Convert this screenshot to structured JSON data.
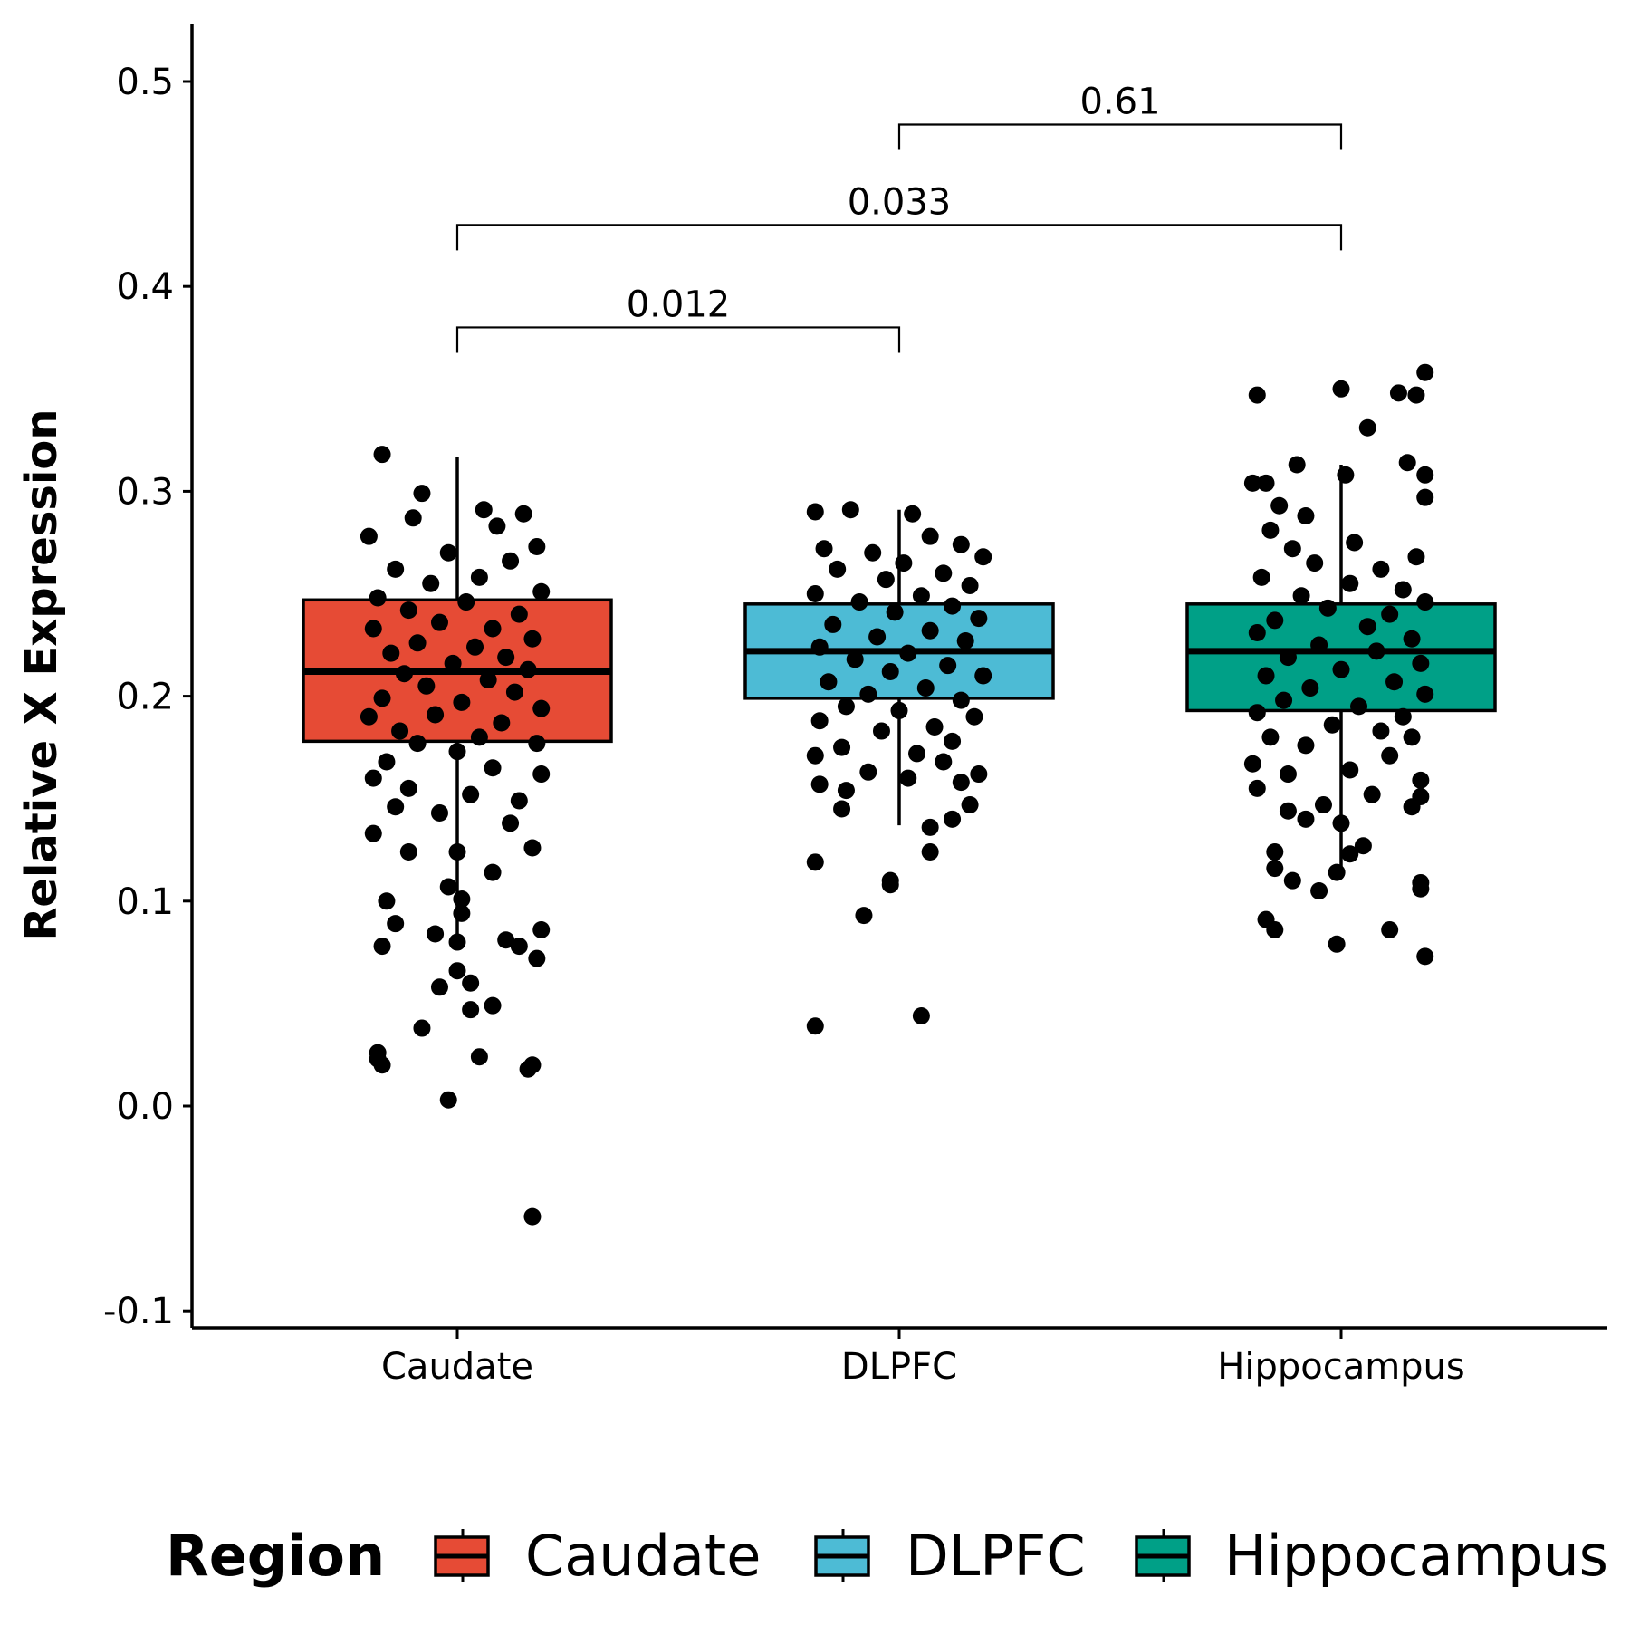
{
  "chart_data": {
    "type": "box",
    "title": "",
    "xlabel": "",
    "ylabel": "Relative X Expression",
    "ylim": [
      -0.1,
      0.53
    ],
    "yticks": [
      -0.1,
      0.0,
      0.1,
      0.2,
      0.3,
      0.4,
      0.5
    ],
    "ytick_labels": [
      "-0.1",
      "0.0",
      "0.1",
      "0.2",
      "0.3",
      "0.4",
      "0.5"
    ],
    "categories": [
      "Caudate",
      "DLPFC",
      "Hippocampus"
    ],
    "grid": false,
    "legend": {
      "title": "Region",
      "position": "bottom",
      "entries": [
        "Caudate",
        "DLPFC",
        "Hippocampus"
      ]
    },
    "colors": {
      "Caudate": "#E64B35",
      "DLPFC": "#4DBBD5",
      "Hippocampus": "#00A087"
    },
    "boxes": [
      {
        "name": "Caudate",
        "q1": 0.178,
        "median": 0.212,
        "q3": 0.247,
        "whisker_low": 0.084,
        "whisker_high": 0.317
      },
      {
        "name": "DLPFC",
        "q1": 0.199,
        "median": 0.222,
        "q3": 0.245,
        "whisker_low": 0.137,
        "whisker_high": 0.291
      },
      {
        "name": "Hippocampus",
        "q1": 0.193,
        "median": 0.222,
        "q3": 0.245,
        "whisker_low": 0.117,
        "whisker_high": 0.313
      }
    ],
    "comparisons": [
      {
        "from": "Caudate",
        "to": "DLPFC",
        "p_value": "0.012",
        "y": 0.38
      },
      {
        "from": "Caudate",
        "to": "Hippocampus",
        "p_value": "0.033",
        "y": 0.43
      },
      {
        "from": "DLPFC",
        "to": "Hippocampus",
        "p_value": "0.61",
        "y": 0.479
      }
    ],
    "points": {
      "Caudate": [
        {
          "dx": -0.17,
          "y": 0.318
        },
        {
          "dx": -0.08,
          "y": 0.299
        },
        {
          "dx": 0.06,
          "y": 0.291
        },
        {
          "dx": 0.15,
          "y": 0.289
        },
        {
          "dx": -0.1,
          "y": 0.287
        },
        {
          "dx": 0.09,
          "y": 0.283
        },
        {
          "dx": -0.2,
          "y": 0.278
        },
        {
          "dx": 0.18,
          "y": 0.273
        },
        {
          "dx": -0.02,
          "y": 0.27
        },
        {
          "dx": 0.12,
          "y": 0.266
        },
        {
          "dx": -0.14,
          "y": 0.262
        },
        {
          "dx": 0.05,
          "y": 0.258
        },
        {
          "dx": -0.06,
          "y": 0.255
        },
        {
          "dx": 0.19,
          "y": 0.251
        },
        {
          "dx": -0.18,
          "y": 0.248
        },
        {
          "dx": 0.02,
          "y": 0.246
        },
        {
          "dx": -0.11,
          "y": 0.242
        },
        {
          "dx": 0.14,
          "y": 0.24
        },
        {
          "dx": -0.04,
          "y": 0.236
        },
        {
          "dx": 0.08,
          "y": 0.233
        },
        {
          "dx": -0.19,
          "y": 0.233
        },
        {
          "dx": 0.17,
          "y": 0.228
        },
        {
          "dx": -0.09,
          "y": 0.226
        },
        {
          "dx": 0.04,
          "y": 0.224
        },
        {
          "dx": -0.15,
          "y": 0.221
        },
        {
          "dx": 0.11,
          "y": 0.219
        },
        {
          "dx": -0.01,
          "y": 0.216
        },
        {
          "dx": 0.16,
          "y": 0.213
        },
        {
          "dx": -0.12,
          "y": 0.211
        },
        {
          "dx": 0.07,
          "y": 0.208
        },
        {
          "dx": -0.07,
          "y": 0.205
        },
        {
          "dx": 0.13,
          "y": 0.202
        },
        {
          "dx": -0.17,
          "y": 0.199
        },
        {
          "dx": 0.01,
          "y": 0.197
        },
        {
          "dx": 0.19,
          "y": 0.194
        },
        {
          "dx": -0.05,
          "y": 0.191
        },
        {
          "dx": -0.2,
          "y": 0.19
        },
        {
          "dx": 0.1,
          "y": 0.187
        },
        {
          "dx": -0.13,
          "y": 0.183
        },
        {
          "dx": 0.05,
          "y": 0.18
        },
        {
          "dx": -0.09,
          "y": 0.177
        },
        {
          "dx": 0.18,
          "y": 0.177
        },
        {
          "dx": 0.0,
          "y": 0.173
        },
        {
          "dx": -0.16,
          "y": 0.168
        },
        {
          "dx": 0.08,
          "y": 0.165
        },
        {
          "dx": 0.19,
          "y": 0.162
        },
        {
          "dx": -0.19,
          "y": 0.16
        },
        {
          "dx": -0.11,
          "y": 0.155
        },
        {
          "dx": 0.03,
          "y": 0.152
        },
        {
          "dx": 0.14,
          "y": 0.149
        },
        {
          "dx": -0.14,
          "y": 0.146
        },
        {
          "dx": -0.04,
          "y": 0.143
        },
        {
          "dx": 0.12,
          "y": 0.138
        },
        {
          "dx": -0.19,
          "y": 0.133
        },
        {
          "dx": 0.17,
          "y": 0.126
        },
        {
          "dx": -0.11,
          "y": 0.124
        },
        {
          "dx": 0.0,
          "y": 0.124
        },
        {
          "dx": 0.08,
          "y": 0.114
        },
        {
          "dx": -0.02,
          "y": 0.107
        },
        {
          "dx": 0.01,
          "y": 0.101
        },
        {
          "dx": -0.16,
          "y": 0.1
        },
        {
          "dx": 0.01,
          "y": 0.094
        },
        {
          "dx": -0.14,
          "y": 0.089
        },
        {
          "dx": 0.19,
          "y": 0.086
        },
        {
          "dx": -0.05,
          "y": 0.084
        },
        {
          "dx": 0.11,
          "y": 0.081
        },
        {
          "dx": 0.0,
          "y": 0.08
        },
        {
          "dx": 0.14,
          "y": 0.078
        },
        {
          "dx": -0.17,
          "y": 0.078
        },
        {
          "dx": 0.18,
          "y": 0.072
        },
        {
          "dx": 0.0,
          "y": 0.066
        },
        {
          "dx": 0.03,
          "y": 0.06
        },
        {
          "dx": -0.04,
          "y": 0.058
        },
        {
          "dx": 0.08,
          "y": 0.049
        },
        {
          "dx": 0.03,
          "y": 0.047
        },
        {
          "dx": -0.08,
          "y": 0.038
        },
        {
          "dx": -0.18,
          "y": 0.026
        },
        {
          "dx": -0.18,
          "y": 0.023
        },
        {
          "dx": 0.05,
          "y": 0.024
        },
        {
          "dx": 0.17,
          "y": 0.02
        },
        {
          "dx": -0.17,
          "y": 0.02
        },
        {
          "dx": 0.16,
          "y": 0.018
        },
        {
          "dx": -0.02,
          "y": 0.003
        },
        {
          "dx": 0.17,
          "y": -0.054
        }
      ],
      "DLPFC": [
        {
          "dx": -0.19,
          "y": 0.29
        },
        {
          "dx": -0.11,
          "y": 0.291
        },
        {
          "dx": 0.03,
          "y": 0.289
        },
        {
          "dx": 0.07,
          "y": 0.278
        },
        {
          "dx": -0.17,
          "y": 0.272
        },
        {
          "dx": 0.14,
          "y": 0.274
        },
        {
          "dx": -0.06,
          "y": 0.27
        },
        {
          "dx": 0.19,
          "y": 0.268
        },
        {
          "dx": 0.01,
          "y": 0.265
        },
        {
          "dx": -0.14,
          "y": 0.262
        },
        {
          "dx": 0.1,
          "y": 0.26
        },
        {
          "dx": -0.03,
          "y": 0.257
        },
        {
          "dx": 0.16,
          "y": 0.254
        },
        {
          "dx": -0.19,
          "y": 0.25
        },
        {
          "dx": 0.05,
          "y": 0.249
        },
        {
          "dx": -0.09,
          "y": 0.246
        },
        {
          "dx": 0.12,
          "y": 0.244
        },
        {
          "dx": -0.01,
          "y": 0.241
        },
        {
          "dx": 0.18,
          "y": 0.238
        },
        {
          "dx": -0.15,
          "y": 0.235
        },
        {
          "dx": 0.07,
          "y": 0.232
        },
        {
          "dx": -0.05,
          "y": 0.229
        },
        {
          "dx": 0.15,
          "y": 0.227
        },
        {
          "dx": -0.18,
          "y": 0.224
        },
        {
          "dx": 0.02,
          "y": 0.221
        },
        {
          "dx": -0.1,
          "y": 0.218
        },
        {
          "dx": 0.11,
          "y": 0.215
        },
        {
          "dx": -0.02,
          "y": 0.212
        },
        {
          "dx": 0.19,
          "y": 0.21
        },
        {
          "dx": -0.16,
          "y": 0.207
        },
        {
          "dx": 0.06,
          "y": 0.204
        },
        {
          "dx": -0.07,
          "y": 0.201
        },
        {
          "dx": 0.14,
          "y": 0.198
        },
        {
          "dx": -0.12,
          "y": 0.195
        },
        {
          "dx": 0.0,
          "y": 0.193
        },
        {
          "dx": 0.17,
          "y": 0.19
        },
        {
          "dx": -0.18,
          "y": 0.188
        },
        {
          "dx": 0.08,
          "y": 0.185
        },
        {
          "dx": -0.04,
          "y": 0.183
        },
        {
          "dx": 0.12,
          "y": 0.178
        },
        {
          "dx": -0.13,
          "y": 0.175
        },
        {
          "dx": 0.04,
          "y": 0.172
        },
        {
          "dx": -0.19,
          "y": 0.171
        },
        {
          "dx": 0.1,
          "y": 0.168
        },
        {
          "dx": -0.07,
          "y": 0.163
        },
        {
          "dx": 0.18,
          "y": 0.162
        },
        {
          "dx": 0.02,
          "y": 0.16
        },
        {
          "dx": -0.18,
          "y": 0.157
        },
        {
          "dx": 0.14,
          "y": 0.158
        },
        {
          "dx": -0.12,
          "y": 0.154
        },
        {
          "dx": 0.16,
          "y": 0.147
        },
        {
          "dx": -0.13,
          "y": 0.145
        },
        {
          "dx": 0.12,
          "y": 0.14
        },
        {
          "dx": 0.07,
          "y": 0.136
        },
        {
          "dx": 0.07,
          "y": 0.124
        },
        {
          "dx": -0.19,
          "y": 0.119
        },
        {
          "dx": -0.02,
          "y": 0.11
        },
        {
          "dx": -0.02,
          "y": 0.108
        },
        {
          "dx": -0.08,
          "y": 0.093
        },
        {
          "dx": 0.05,
          "y": 0.044
        },
        {
          "dx": -0.19,
          "y": 0.039
        }
      ],
      "Hippocampus": [
        {
          "dx": 0.19,
          "y": 0.358
        },
        {
          "dx": 0.0,
          "y": 0.35
        },
        {
          "dx": 0.13,
          "y": 0.348
        },
        {
          "dx": 0.17,
          "y": 0.347
        },
        {
          "dx": -0.19,
          "y": 0.347
        },
        {
          "dx": 0.06,
          "y": 0.331
        },
        {
          "dx": 0.15,
          "y": 0.314
        },
        {
          "dx": -0.1,
          "y": 0.313
        },
        {
          "dx": 0.19,
          "y": 0.308
        },
        {
          "dx": 0.01,
          "y": 0.308
        },
        {
          "dx": -0.2,
          "y": 0.304
        },
        {
          "dx": -0.17,
          "y": 0.304
        },
        {
          "dx": 0.19,
          "y": 0.297
        },
        {
          "dx": -0.14,
          "y": 0.293
        },
        {
          "dx": -0.08,
          "y": 0.288
        },
        {
          "dx": -0.16,
          "y": 0.281
        },
        {
          "dx": 0.03,
          "y": 0.275
        },
        {
          "dx": -0.11,
          "y": 0.272
        },
        {
          "dx": 0.17,
          "y": 0.268
        },
        {
          "dx": -0.06,
          "y": 0.265
        },
        {
          "dx": 0.09,
          "y": 0.262
        },
        {
          "dx": -0.18,
          "y": 0.258
        },
        {
          "dx": 0.02,
          "y": 0.255
        },
        {
          "dx": 0.14,
          "y": 0.252
        },
        {
          "dx": -0.09,
          "y": 0.249
        },
        {
          "dx": 0.19,
          "y": 0.246
        },
        {
          "dx": -0.03,
          "y": 0.243
        },
        {
          "dx": 0.11,
          "y": 0.24
        },
        {
          "dx": -0.15,
          "y": 0.237
        },
        {
          "dx": 0.06,
          "y": 0.234
        },
        {
          "dx": -0.19,
          "y": 0.231
        },
        {
          "dx": 0.16,
          "y": 0.228
        },
        {
          "dx": -0.05,
          "y": 0.225
        },
        {
          "dx": 0.08,
          "y": 0.222
        },
        {
          "dx": -0.12,
          "y": 0.219
        },
        {
          "dx": 0.18,
          "y": 0.216
        },
        {
          "dx": 0.0,
          "y": 0.213
        },
        {
          "dx": -0.17,
          "y": 0.21
        },
        {
          "dx": 0.12,
          "y": 0.207
        },
        {
          "dx": -0.07,
          "y": 0.204
        },
        {
          "dx": 0.19,
          "y": 0.201
        },
        {
          "dx": -0.13,
          "y": 0.198
        },
        {
          "dx": 0.04,
          "y": 0.195
        },
        {
          "dx": -0.19,
          "y": 0.192
        },
        {
          "dx": 0.14,
          "y": 0.19
        },
        {
          "dx": -0.02,
          "y": 0.186
        },
        {
          "dx": 0.09,
          "y": 0.183
        },
        {
          "dx": -0.16,
          "y": 0.18
        },
        {
          "dx": 0.16,
          "y": 0.18
        },
        {
          "dx": -0.08,
          "y": 0.176
        },
        {
          "dx": 0.11,
          "y": 0.171
        },
        {
          "dx": -0.2,
          "y": 0.167
        },
        {
          "dx": 0.02,
          "y": 0.164
        },
        {
          "dx": -0.12,
          "y": 0.162
        },
        {
          "dx": 0.18,
          "y": 0.159
        },
        {
          "dx": -0.19,
          "y": 0.155
        },
        {
          "dx": 0.07,
          "y": 0.152
        },
        {
          "dx": 0.18,
          "y": 0.151
        },
        {
          "dx": -0.04,
          "y": 0.147
        },
        {
          "dx": 0.16,
          "y": 0.146
        },
        {
          "dx": -0.12,
          "y": 0.144
        },
        {
          "dx": 0.0,
          "y": 0.138
        },
        {
          "dx": -0.08,
          "y": 0.14
        },
        {
          "dx": 0.05,
          "y": 0.127
        },
        {
          "dx": -0.15,
          "y": 0.124
        },
        {
          "dx": 0.02,
          "y": 0.123
        },
        {
          "dx": -0.15,
          "y": 0.116
        },
        {
          "dx": -0.01,
          "y": 0.114
        },
        {
          "dx": -0.11,
          "y": 0.11
        },
        {
          "dx": 0.18,
          "y": 0.109
        },
        {
          "dx": 0.18,
          "y": 0.106
        },
        {
          "dx": -0.05,
          "y": 0.105
        },
        {
          "dx": -0.17,
          "y": 0.091
        },
        {
          "dx": -0.15,
          "y": 0.086
        },
        {
          "dx": 0.11,
          "y": 0.086
        },
        {
          "dx": -0.01,
          "y": 0.079
        },
        {
          "dx": 0.19,
          "y": 0.073
        }
      ]
    }
  }
}
